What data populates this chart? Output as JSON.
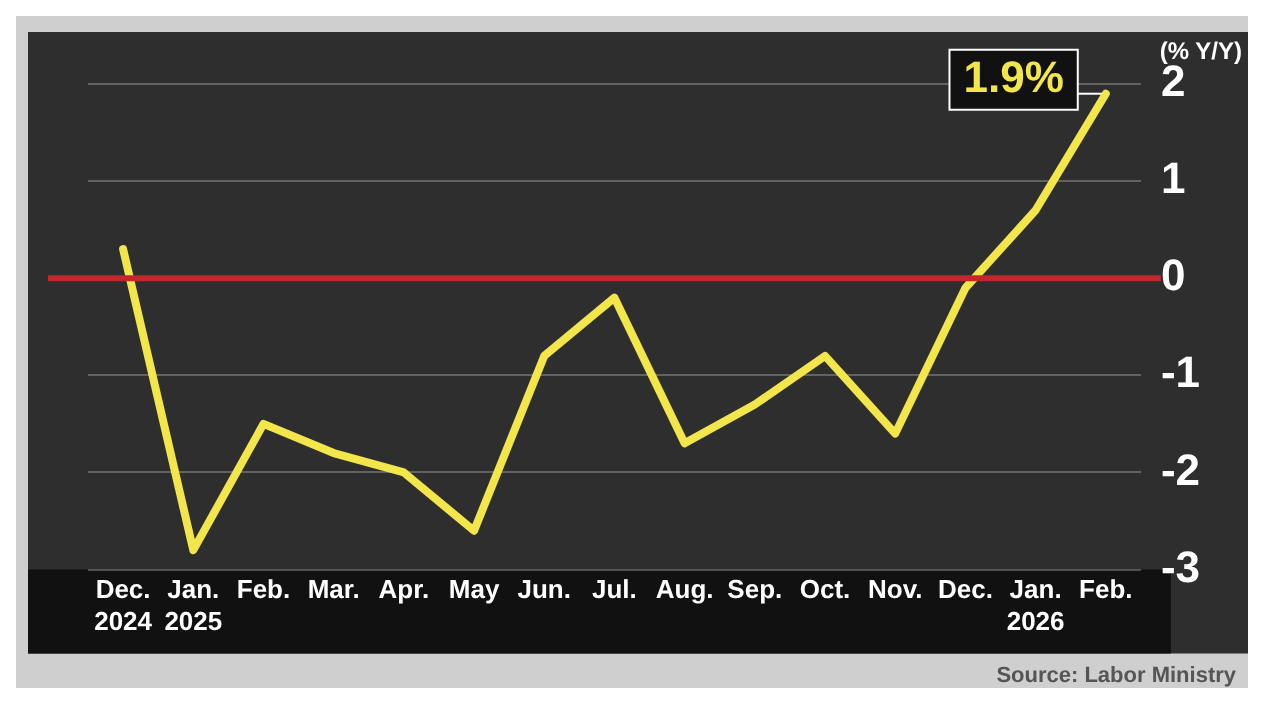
{
  "chart_data": {
    "type": "line",
    "ylabel": "(% Y/Y)",
    "categories": [
      "Dec.\n2024",
      "Jan.\n2025",
      "Feb.",
      "Mar.",
      "Apr.",
      "May",
      "Jun.",
      "Jul.",
      "Aug.",
      "Sep.",
      "Oct.",
      "Nov.",
      "Dec.",
      "Jan.\n2026",
      "Feb."
    ],
    "series": [
      {
        "color": "#f2e64a",
        "values": [
          0.3,
          -2.8,
          -1.5,
          -1.8,
          -2.0,
          -2.6,
          -0.8,
          -0.2,
          -1.7,
          -1.3,
          -0.8,
          -1.6,
          -0.1,
          0.7,
          1.9
        ]
      }
    ],
    "ylim": [
      -3,
      2
    ],
    "yticks": [
      -3,
      -2,
      -1,
      0,
      1,
      2
    ],
    "grid": "y",
    "legend": false,
    "marker": "none",
    "line_style": "solid",
    "ref_lines": [
      {
        "axis": "y",
        "value": 0,
        "color": "#c0282d"
      }
    ],
    "annotations": [
      "1.9%",
      "Source: Labor Ministry"
    ]
  }
}
